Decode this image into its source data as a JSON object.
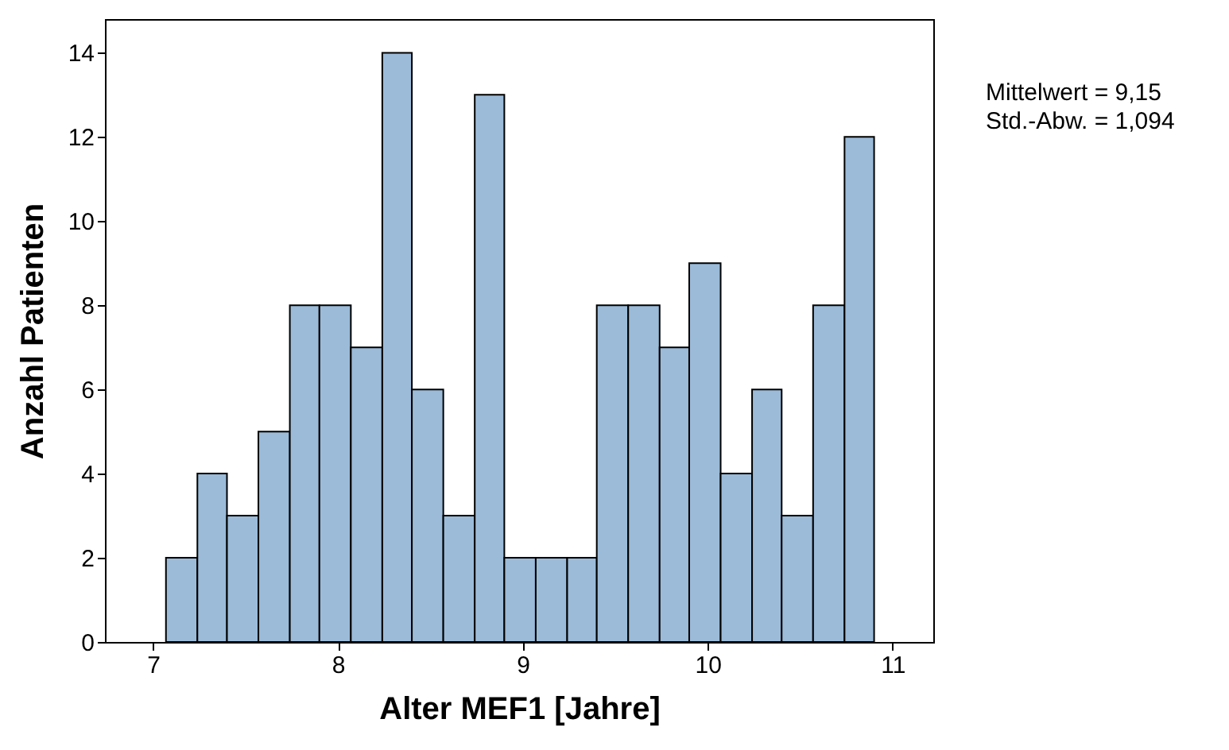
{
  "chart_data": {
    "type": "histogram",
    "xlabel": "Alter MEF1 [Jahre]",
    "ylabel": "Anzahl Patienten",
    "bins": [
      7.07,
      7.24,
      7.4,
      7.57,
      7.74,
      7.9,
      8.07,
      8.24,
      8.4,
      8.57,
      8.74,
      8.9,
      9.07,
      9.24,
      9.4,
      9.57,
      9.74,
      9.9,
      10.07,
      10.24,
      10.4,
      10.57,
      10.74,
      10.9
    ],
    "values": [
      2,
      4,
      3,
      5,
      8,
      8,
      7,
      14,
      6,
      3,
      13,
      2,
      2,
      2,
      8,
      8,
      7,
      9,
      4,
      6,
      3,
      8,
      12
    ],
    "color": "#9bbbd9",
    "xlim": [
      6.74,
      11.22
    ],
    "xticks": [
      7,
      8,
      9,
      10,
      11
    ],
    "ylim": [
      0,
      14.8
    ],
    "yticks": [
      0,
      2,
      4,
      6,
      8,
      10,
      12,
      14
    ],
    "grid": false,
    "annotations": [
      "Mittelwert = 9,15",
      "Std.-Abw. = 1,094"
    ]
  }
}
